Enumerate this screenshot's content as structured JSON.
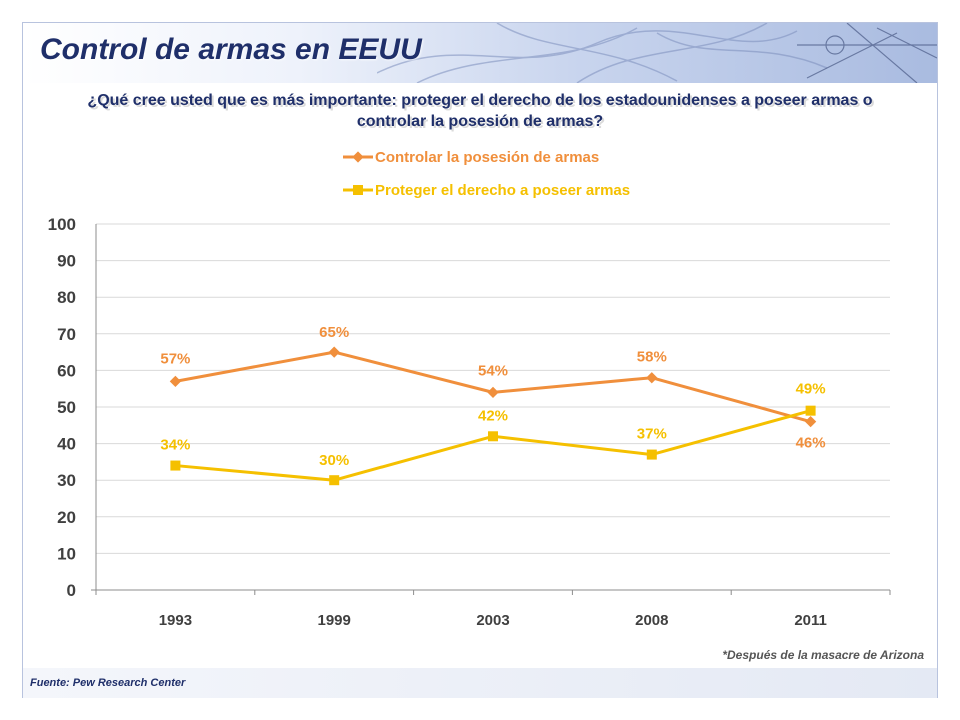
{
  "slide": {
    "title": "Control de armas en EEUU",
    "question": "¿Qué cree usted que es más importante: proteger el derecho de los estadounidenses a poseer armas o controlar la posesión de armas?",
    "note": "*Después de la masacre de Arizona",
    "source": "Fuente: Pew Research Center"
  },
  "chart_data": {
    "type": "line",
    "title": "¿Qué cree usted que es más importante: proteger el derecho de los estadounidenses a poseer armas o controlar la posesión de armas?",
    "xlabel": "",
    "ylabel": "",
    "categories": [
      "1993",
      "1999",
      "2003",
      "2008",
      "2011"
    ],
    "ylim": [
      0,
      100
    ],
    "yticks": [
      0,
      10,
      20,
      30,
      40,
      50,
      60,
      70,
      80,
      90,
      100
    ],
    "grid": true,
    "legend_position": "top",
    "series": [
      {
        "name": "Controlar la posesión de armas",
        "color": "#f08f3c",
        "marker": "diamond",
        "values": [
          57,
          65,
          54,
          58,
          46
        ],
        "labels": [
          "57%",
          "65%",
          "54%",
          "58%",
          "46%"
        ]
      },
      {
        "name": "Proteger el derecho a poseer armas",
        "color": "#f5c000",
        "marker": "square",
        "values": [
          34,
          30,
          42,
          37,
          49
        ],
        "labels": [
          "34%",
          "30%",
          "42%",
          "37%",
          "49%"
        ]
      }
    ]
  }
}
